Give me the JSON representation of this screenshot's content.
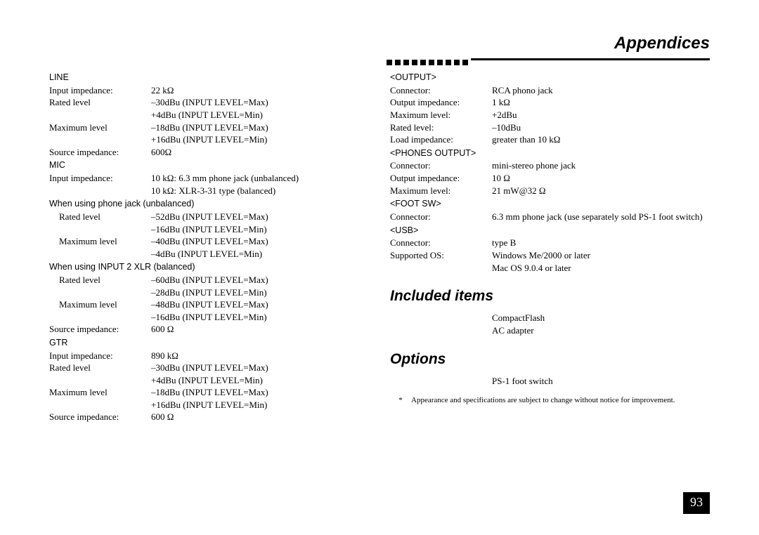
{
  "header": {
    "title": "Appendices"
  },
  "left": {
    "line_h": "LINE",
    "line": {
      "input_imp_l": "Input impedance:",
      "input_imp_v": "22 kΩ",
      "rated_l": "Rated level",
      "rated_v1": "–30dBu (INPUT LEVEL=Max)",
      "rated_v2": "+4dBu (INPUT LEVEL=Min)",
      "max_l": "Maximum level",
      "max_v1": "–18dBu (INPUT LEVEL=Max)",
      "max_v2": "+16dBu (INPUT LEVEL=Min)",
      "src_l": "Source impedance:",
      "src_v": "600Ω"
    },
    "mic_h": "MIC",
    "mic": {
      "in_l": "Input impedance:",
      "in_v1": "10 kΩ: 6.3 mm phone jack (unbalanced)",
      "in_v2": "10 kΩ: XLR-3-31 type (balanced)"
    },
    "pj_h": "When using phone jack (unbalanced)",
    "pj": {
      "rated_l": "Rated level",
      "rated_v1": "–52dBu (INPUT LEVEL=Max)",
      "rated_v2": "–16dBu (INPUT LEVEL=Min)",
      "max_l": "Maximum level",
      "max_v1": "–40dBu (INPUT LEVEL=Max)",
      "max_v2": "–4dBu (INPUT LEVEL=Min)"
    },
    "xlr_h": "When using INPUT 2 XLR (balanced)",
    "xlr": {
      "rated_l": "Rated level",
      "rated_v1": "–60dBu (INPUT LEVEL=Max)",
      "rated_v2": "–28dBu (INPUT LEVEL=Min)",
      "max_l": "Maximum level",
      "max_v1": "–48dBu (INPUT LEVEL=Max)",
      "max_v2": "–16dBu (INPUT LEVEL=Min)",
      "src_l": "Source impedance:",
      "src_v": "600 Ω"
    },
    "gtr_h": "GTR",
    "gtr": {
      "in_l": "Input impedance:",
      "in_v": "890 kΩ",
      "rated_l": "Rated level",
      "rated_v1": "–30dBu (INPUT LEVEL=Max)",
      "rated_v2": "+4dBu (INPUT LEVEL=Min)",
      "max_l": "Maximum level",
      "max_v1": "–18dBu (INPUT LEVEL=Max)",
      "max_v2": "+16dBu (INPUT LEVEL=Min)",
      "src_l": "Source impedance:",
      "src_v": "600 Ω"
    }
  },
  "right": {
    "out_h": "<OUTPUT>",
    "out": {
      "conn_l": "Connector:",
      "conn_v": "RCA phono jack",
      "oimp_l": "Output impedance:",
      "oimp_v": "1 kΩ",
      "max_l": "Maximum level:",
      "max_v": "+2dBu",
      "rated_l": "Rated level:",
      "rated_v": "–10dBu",
      "load_l": "Load impedance:",
      "load_v": "greater than 10 kΩ"
    },
    "ph_h": "<PHONES OUTPUT>",
    "ph": {
      "conn_l": "Connector:",
      "conn_v": "mini-stereo phone jack",
      "oimp_l": "Output impedance:",
      "oimp_v": "10 Ω",
      "max_l": "Maximum level:",
      "max_v": "21 mW@32 Ω"
    },
    "fsw_h": "<FOOT SW>",
    "fsw": {
      "conn_l": "Connector:",
      "conn_v": "6.3 mm phone jack (use separately sold PS-1 foot switch)"
    },
    "usb_h": "<USB>",
    "usb": {
      "conn_l": "Connector:",
      "conn_v": "type B",
      "os_l": "Supported OS:",
      "os_v1": "Windows Me/2000 or later",
      "os_v2": "Mac OS 9.0.4 or later"
    },
    "included_title": "Included items",
    "included1": "CompactFlash",
    "included2": "AC adapter",
    "options_title": "Options",
    "options1": "PS-1 foot switch",
    "footnote_ast": "*",
    "footnote": "Appearance and specifications are subject to change without notice for improvement."
  },
  "page_number": "93"
}
